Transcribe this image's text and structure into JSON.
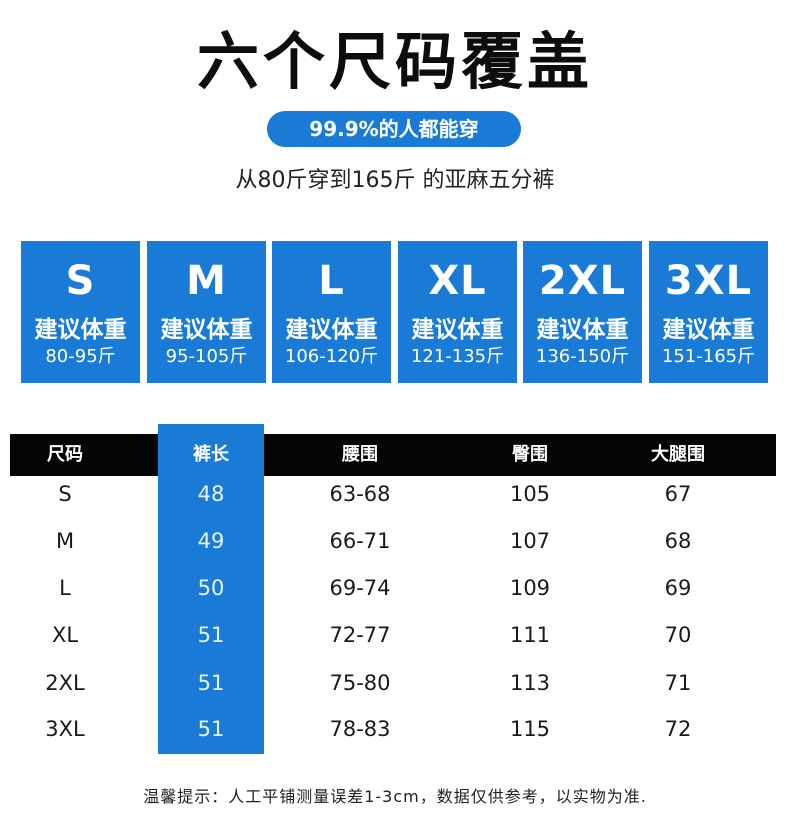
{
  "title": "六个尺码覆盖",
  "pill": "99.9%的人都能穿",
  "subtitle": "从80斤穿到165斤 的亚麻五分裤",
  "size_cards": [
    {
      "size": "S",
      "label": "建议体重",
      "range": "80-95斤"
    },
    {
      "size": "M",
      "label": "建议体重",
      "range": "95-105斤"
    },
    {
      "size": "L",
      "label": "建议体重",
      "range": "106-120斤"
    },
    {
      "size": "XL",
      "label": "建议体重",
      "range": "121-135斤"
    },
    {
      "size": "2XL",
      "label": "建议体重",
      "range": "136-150斤"
    },
    {
      "size": "3XL",
      "label": "建议体重",
      "range": "151-165斤"
    }
  ],
  "table": {
    "headers": [
      "尺码",
      "裤长",
      "腰围",
      "臀围",
      "大腿围"
    ],
    "rows": [
      [
        "S",
        "48",
        "63-68",
        "105",
        "67"
      ],
      [
        "M",
        "49",
        "66-71",
        "107",
        "68"
      ],
      [
        "L",
        "50",
        "69-74",
        "109",
        "69"
      ],
      [
        "XL",
        "51",
        "72-77",
        "111",
        "70"
      ],
      [
        "2XL",
        "51",
        "75-80",
        "113",
        "71"
      ],
      [
        "3XL",
        "51",
        "78-83",
        "115",
        "72"
      ]
    ]
  },
  "note": "温馨提示：人工平铺测量误差1-3cm，数据仅供参考，以实物为准.",
  "colors": {
    "accent": "#1a7bd6",
    "header_bg": "#050505"
  }
}
